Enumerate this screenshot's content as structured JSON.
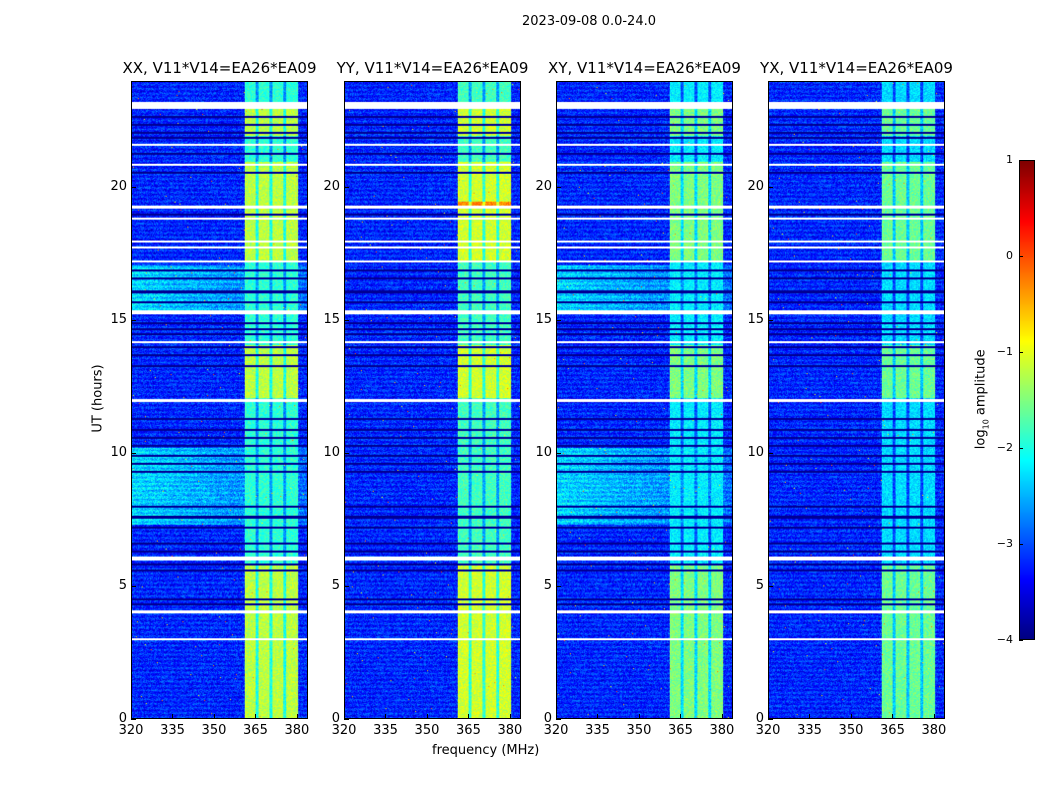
{
  "chart_data": {
    "type": "heatmap",
    "title": "2023-09-08 0.0-24.0",
    "xlabel": "frequency (MHz)",
    "ylabel": "UT (hours)",
    "xlim": [
      320,
      384
    ],
    "ylim": [
      0,
      24
    ],
    "xticks": [
      320,
      335,
      350,
      365,
      380
    ],
    "yticks": [
      0,
      5,
      10,
      15,
      20
    ],
    "colorbar": {
      "label_main": "log",
      "label_sub": "10",
      "label_rest": " amplitude",
      "range": [
        -4,
        1
      ],
      "ticks": [
        1,
        0,
        -1,
        -2,
        -3,
        -4
      ],
      "tick_labels": [
        "1",
        "0",
        "−1",
        "−2",
        "−3",
        "−4"
      ],
      "colormap": "jet"
    },
    "panels": [
      {
        "title": "XX, V11*V14=EA26*EA09",
        "band_level": -1.2
      },
      {
        "title": "YY, V11*V14=EA26*EA09",
        "band_level": -1.1
      },
      {
        "title": "XY, V11*V14=EA26*EA09",
        "band_level": -1.5
      },
      {
        "title": "YX, V11*V14=EA26*EA09",
        "band_level": -1.6
      }
    ],
    "background_level": -3.2,
    "rfi_band_mhz": [
      361,
      380.5
    ],
    "band_gaps_mhz": [
      365.5,
      370.5,
      375.6
    ],
    "flagged_hours": [
      [
        23.0,
        23.25
      ],
      [
        21.6,
        21.7
      ],
      [
        20.85,
        20.95
      ],
      [
        19.25,
        19.35
      ],
      [
        18.82,
        18.9
      ],
      [
        17.95,
        18.05
      ],
      [
        17.75,
        17.82
      ],
      [
        17.2,
        17.3
      ],
      [
        15.25,
        15.4
      ],
      [
        14.15,
        14.22
      ],
      [
        11.95,
        12.05
      ],
      [
        5.95,
        6.1
      ],
      [
        3.95,
        4.1
      ],
      [
        2.95,
        3.02
      ]
    ],
    "dark_hours": [
      22.7,
      22.4,
      22.1,
      21.9,
      21.3,
      20.6,
      19.0,
      16.9,
      16.6,
      16.1,
      15.7,
      14.9,
      14.7,
      14.5,
      14.0,
      13.7,
      13.3,
      11.3,
      10.9,
      10.6,
      10.3,
      9.9,
      9.6,
      9.3,
      8.0,
      7.6,
      7.2,
      6.6,
      6.3,
      5.8,
      5.6,
      4.5,
      4.3
    ]
  }
}
